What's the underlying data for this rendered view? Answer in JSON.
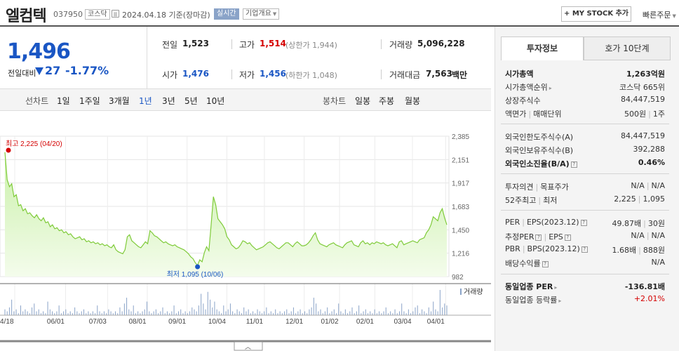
{
  "header": {
    "company_name": "엘컴텍",
    "stock_code": "037950",
    "market": "코스닥",
    "as_of": "2024.04.18  기준(장마감)",
    "realtime_label": "실시간",
    "overview_label": "기업개요",
    "mystock_label": "+ MY STOCK 추가",
    "quick_order_label": "빠른주문"
  },
  "price": {
    "current": "1,496",
    "change_label": "전일대비",
    "change": "27",
    "change_pct": "-1.77%",
    "prev_close_label": "전일",
    "prev_close": "1,523",
    "high_label": "고가",
    "high": "1,514",
    "upper_limit": "(상한가 1,944)",
    "volume_label": "거래량",
    "volume": "5,096,228",
    "open_label": "시가",
    "open": "1,476",
    "low_label": "저가",
    "low": "1,456",
    "lower_limit": "(하한가 1,048)",
    "amount_label": "거래대금",
    "amount": "7,563",
    "amount_unit": "백만"
  },
  "chart_tabs": {
    "line_label": "선차트",
    "periods": [
      "1일",
      "1주일",
      "3개월",
      "1년",
      "3년",
      "5년",
      "10년"
    ],
    "active_period": "1년",
    "candle_label": "봉차트",
    "candles": [
      "일봉",
      "주봉",
      "월봉"
    ]
  },
  "chart_data": {
    "type": "area",
    "y_ticks": [
      "2,385",
      "2,151",
      "1,917",
      "1,683",
      "1,450",
      "1,216",
      "982"
    ],
    "ylim": [
      982,
      2385
    ],
    "x_ticks": [
      "04/18",
      "06/01",
      "07/03",
      "08/01",
      "09/01",
      "10/04",
      "11/01",
      "12/01",
      "01/02",
      "02/01",
      "03/04",
      "04/01"
    ],
    "x_start": "04/18",
    "x_end": "04/18",
    "series": [
      {
        "values": [
          2225,
          1950,
          1880,
          1910,
          1780,
          1800,
          1690,
          1700,
          1640,
          1660,
          1610,
          1620,
          1590,
          1570,
          1600,
          1560,
          1540,
          1570,
          1520,
          1530,
          1480,
          1500,
          1460,
          1470,
          1440,
          1450,
          1420,
          1430,
          1400,
          1410,
          1380,
          1360,
          1370,
          1380,
          1350,
          1360,
          1330,
          1340,
          1320,
          1330,
          1310,
          1320,
          1300,
          1310,
          1290,
          1300,
          1280,
          1270,
          1300,
          1250,
          1230,
          1220,
          1210,
          1250,
          1380,
          1400,
          1340,
          1320,
          1300,
          1280,
          1270,
          1300,
          1330,
          1310,
          1440,
          1420,
          1390,
          1380,
          1360,
          1340,
          1320,
          1330,
          1310,
          1300,
          1290,
          1300,
          1280,
          1270,
          1260,
          1250,
          1230,
          1210,
          1180,
          1160,
          1120,
          1095,
          1150,
          1130,
          1220,
          1280,
          1240,
          1500,
          1780,
          1700,
          1560,
          1530,
          1500,
          1460,
          1380,
          1350,
          1300,
          1280,
          1260,
          1270,
          1300,
          1340,
          1330,
          1310,
          1320,
          1290,
          1270,
          1250,
          1260,
          1270,
          1280,
          1300,
          1320,
          1330,
          1310,
          1290,
          1270,
          1260,
          1280,
          1300,
          1320,
          1320,
          1300,
          1280,
          1310,
          1330,
          1310,
          1290,
          1290,
          1300,
          1320,
          1350,
          1390,
          1420,
          1350,
          1310,
          1300,
          1290,
          1280,
          1300,
          1310,
          1320,
          1300,
          1290,
          1280,
          1270,
          1300,
          1320,
          1330,
          1340,
          1300,
          1290,
          1280,
          1320,
          1340,
          1310,
          1320,
          1300,
          1320,
          1310,
          1330,
          1320,
          1310,
          1320,
          1300,
          1290,
          1300,
          1310,
          1290,
          1270,
          1330,
          1340,
          1300,
          1310,
          1320,
          1330,
          1340,
          1330,
          1320,
          1350,
          1360,
          1370,
          1420,
          1450,
          1500,
          1580,
          1560,
          1540,
          1620,
          1660,
          1570,
          1500
        ]
      }
    ],
    "volume_label": "거래량",
    "volume": [
      3,
      2,
      4,
      8,
      2,
      3,
      1,
      5,
      2,
      3,
      2,
      1,
      4,
      6,
      2,
      3,
      1,
      2,
      1,
      7,
      3,
      2,
      1,
      2,
      5,
      1,
      2,
      3,
      1,
      2,
      1,
      4,
      2,
      1,
      2,
      3,
      1,
      2,
      1,
      2,
      1,
      5,
      2,
      1,
      2,
      1,
      3,
      2,
      1,
      2,
      1,
      4,
      2,
      6,
      9,
      3,
      2,
      5,
      1,
      2,
      1,
      2,
      3,
      7,
      2,
      1,
      2,
      3,
      1,
      2,
      4,
      1,
      2,
      1,
      2,
      5,
      1,
      2,
      3,
      1,
      2,
      1,
      2,
      4,
      3,
      2,
      5,
      11,
      6,
      3,
      12,
      8,
      4,
      7,
      3,
      2,
      1,
      5,
      2,
      3,
      6,
      2,
      1,
      3,
      2,
      1,
      4,
      2,
      3,
      1,
      2,
      1,
      3,
      2,
      1,
      2,
      4,
      1,
      2,
      1,
      3,
      1,
      2,
      1,
      2,
      3,
      1,
      2,
      4,
      1,
      2,
      3,
      1,
      2,
      1,
      3,
      4,
      9,
      6,
      2,
      3,
      1,
      2,
      4,
      1,
      2,
      3,
      1,
      6,
      2,
      1,
      3,
      1,
      2,
      4,
      1,
      2,
      5,
      1,
      2,
      3,
      1,
      2,
      1,
      3,
      1,
      2,
      1,
      2,
      4,
      1,
      2,
      1,
      3,
      1,
      2,
      6,
      2,
      1,
      3,
      1,
      2,
      4,
      5,
      1,
      3,
      2,
      1,
      4,
      2,
      7,
      3,
      2,
      13,
      4,
      6,
      5
    ],
    "annotations": {
      "max": "최고  2,225  (04/20)",
      "min": "최저  1,095  (10/06)"
    }
  },
  "invest_panel": {
    "tab_invest": "투자정보",
    "tab_orderbook": "호가 10단계",
    "market_cap_label": "시가총액",
    "market_cap": "1,263억원",
    "market_cap_rank_label": "시가총액순위",
    "market_cap_rank": "코스닥 665위",
    "shares_label": "상장주식수",
    "shares": "84,447,519",
    "par_label": "액면가",
    "unit_label": "매매단위",
    "par_value": "500원",
    "unit_value": "1주",
    "foreign_limit_label": "외국인한도주식수(A)",
    "foreign_limit": "84,447,519",
    "foreign_hold_label": "외국인보유주식수(B)",
    "foreign_hold": "392,288",
    "foreign_rate_label": "외국인소진율(B/A)",
    "foreign_rate": "0.46%",
    "opinion_label": "투자의견",
    "target_label": "목표주가",
    "opinion": "N/A",
    "target": "N/A",
    "w52_high_label": "52주최고",
    "w52_low_label": "최저",
    "w52_high": "2,225",
    "w52_low": "1,095",
    "per_label": "PER",
    "eps_label": "EPS(2023.12)",
    "per": "49.87배",
    "eps": "30원",
    "est_per_label": "추정PER",
    "est_eps_label": "EPS",
    "est_per": "N/A",
    "est_eps": "N/A",
    "pbr_label": "PBR",
    "bps_label": "BPS(2023.12)",
    "pbr": "1.68배",
    "bps": "888원",
    "div_label": "배당수익률",
    "div": "N/A",
    "sector_per_label": "동일업종 PER",
    "sector_per": "-136.81배",
    "sector_chg_label": "동일업종 등락률",
    "sector_chg": "+2.01%"
  }
}
